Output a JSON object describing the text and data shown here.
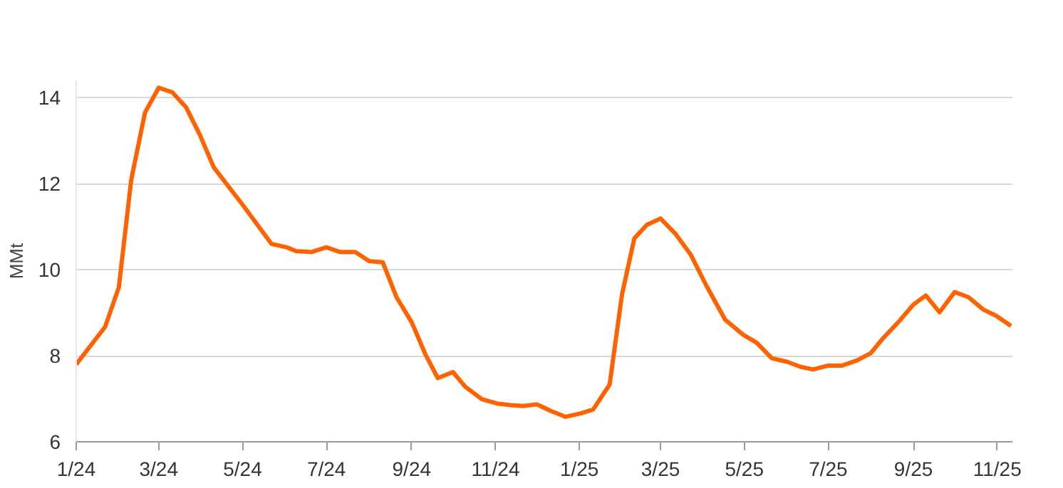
{
  "chart_data": {
    "type": "line",
    "ylabel": "MMt",
    "xlim": [
      "2024-01-01",
      "2025-11-12"
    ],
    "ylim": [
      6,
      14.4
    ],
    "xticks": [
      {
        "value": "2024-01-01",
        "label": "1/24"
      },
      {
        "value": "2024-03-01",
        "label": "3/24"
      },
      {
        "value": "2024-05-01",
        "label": "5/24"
      },
      {
        "value": "2024-07-01",
        "label": "7/24"
      },
      {
        "value": "2024-09-01",
        "label": "9/24"
      },
      {
        "value": "2024-11-01",
        "label": "11/24"
      },
      {
        "value": "2025-01-01",
        "label": "1/25"
      },
      {
        "value": "2025-03-01",
        "label": "3/25"
      },
      {
        "value": "2025-05-01",
        "label": "5/25"
      },
      {
        "value": "2025-07-01",
        "label": "7/25"
      },
      {
        "value": "2025-09-01",
        "label": "9/25"
      },
      {
        "value": "2025-11-01",
        "label": "11/25"
      }
    ],
    "yticks": [
      6,
      8,
      10,
      12,
      14
    ],
    "grid": "y",
    "x": [
      "2024-01-01",
      "2024-01-22",
      "2024-02-01",
      "2024-02-10",
      "2024-02-20",
      "2024-03-01",
      "2024-03-11",
      "2024-03-21",
      "2024-03-31",
      "2024-04-10",
      "2024-05-01",
      "2024-05-22",
      "2024-06-02",
      "2024-06-09",
      "2024-06-20",
      "2024-07-01",
      "2024-07-11",
      "2024-07-22",
      "2024-08-01",
      "2024-08-11",
      "2024-08-21",
      "2024-09-01",
      "2024-09-11",
      "2024-09-20",
      "2024-10-01",
      "2024-10-10",
      "2024-10-22",
      "2024-11-02",
      "2024-11-12",
      "2024-11-21",
      "2024-12-01",
      "2024-12-11",
      "2024-12-22",
      "2025-01-02",
      "2025-01-11",
      "2025-01-23",
      "2025-02-01",
      "2025-02-10",
      "2025-02-19",
      "2025-03-01",
      "2025-03-12",
      "2025-03-23",
      "2025-04-03",
      "2025-04-17",
      "2025-04-30",
      "2025-05-10",
      "2025-05-21",
      "2025-06-01",
      "2025-06-11",
      "2025-06-20",
      "2025-07-01",
      "2025-07-11",
      "2025-07-22",
      "2025-08-01",
      "2025-08-10",
      "2025-08-21",
      "2025-09-01",
      "2025-09-10",
      "2025-09-20",
      "2025-10-01",
      "2025-10-11",
      "2025-10-22",
      "2025-10-31",
      "2025-11-11"
    ],
    "series": [
      {
        "color": "#ff6200",
        "values": [
          7.8,
          8.67,
          9.59,
          12.09,
          13.65,
          14.23,
          14.12,
          13.77,
          13.13,
          12.38,
          11.51,
          10.6,
          10.52,
          10.43,
          10.41,
          10.52,
          10.41,
          10.41,
          10.2,
          10.17,
          9.36,
          8.78,
          8.03,
          7.48,
          7.62,
          7.28,
          6.99,
          6.89,
          6.85,
          6.83,
          6.87,
          6.72,
          6.58,
          6.66,
          6.75,
          7.33,
          9.42,
          10.73,
          11.04,
          11.19,
          10.83,
          10.35,
          9.65,
          8.84,
          8.49,
          8.3,
          7.94,
          7.86,
          7.74,
          7.68,
          7.77,
          7.77,
          7.89,
          8.06,
          8.41,
          8.78,
          9.19,
          9.4,
          9.01,
          9.48,
          9.36,
          9.07,
          8.93,
          8.69
        ]
      }
    ]
  }
}
